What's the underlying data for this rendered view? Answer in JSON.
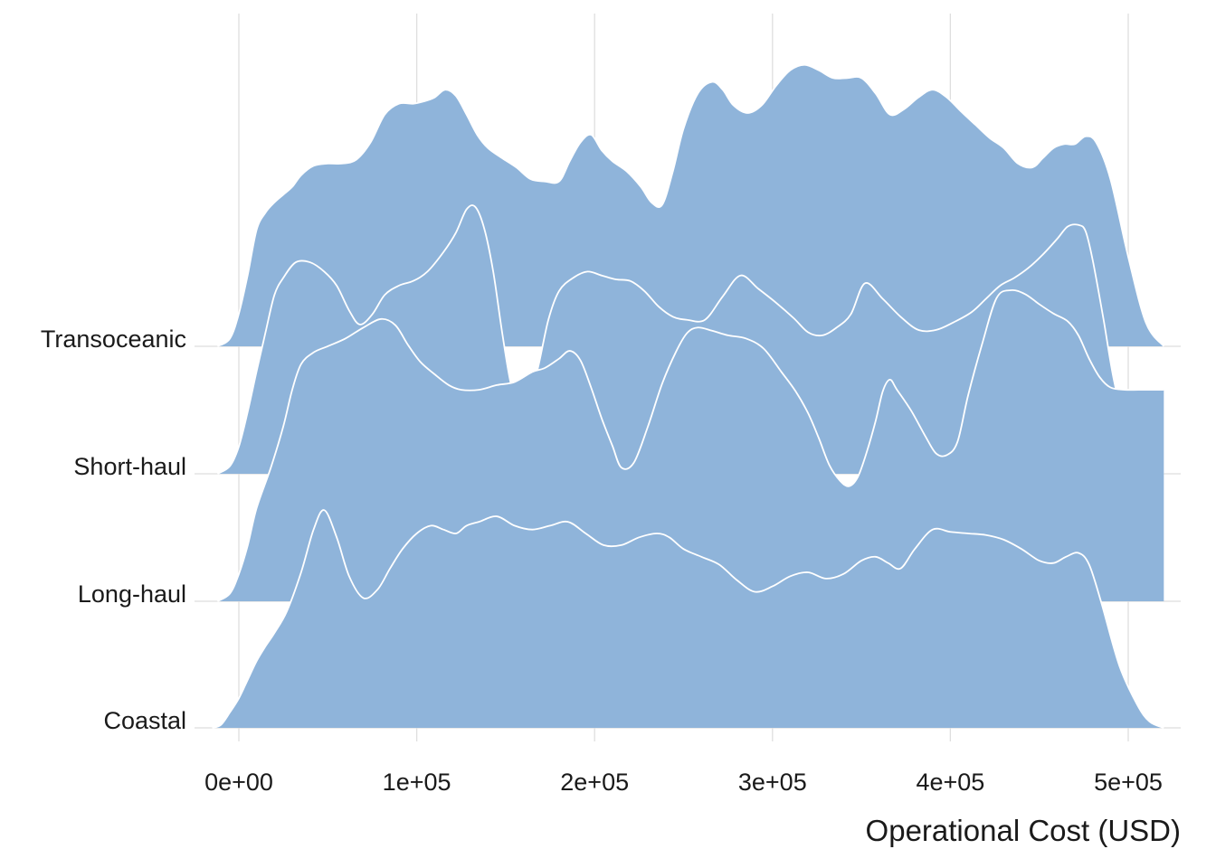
{
  "chart_data": {
    "type": "ridgeline",
    "xlabel": "Operational Cost (USD)",
    "ylabel": "",
    "title": "",
    "xlim": [
      -15000,
      527000
    ],
    "x_ticks": [
      0,
      100000,
      200000,
      300000,
      400000,
      500000
    ],
    "x_tick_labels": [
      "0e+00",
      "1e+05",
      "2e+05",
      "3e+05",
      "4e+05",
      "5e+05"
    ],
    "grid": "vertical major only",
    "fill_color": "#8fb4da",
    "outline_color": "#ffffff",
    "categories": [
      "Coastal",
      "Long-haul",
      "Short-haul",
      "Transoceanic"
    ],
    "series": [
      {
        "name": "Coastal",
        "x": [
          -15000,
          -10000,
          -5000,
          0,
          5000,
          10000,
          15000,
          20000,
          27000,
          35000,
          42000,
          48000,
          55000,
          62000,
          70000,
          78000,
          85000,
          92000,
          100000,
          108000,
          115000,
          122000,
          128000,
          135000,
          145000,
          155000,
          165000,
          175000,
          185000,
          195000,
          205000,
          215000,
          225000,
          235000,
          242000,
          250000,
          260000,
          270000,
          280000,
          290000,
          300000,
          310000,
          320000,
          330000,
          340000,
          350000,
          358000,
          365000,
          372000,
          380000,
          390000,
          400000,
          410000,
          420000,
          430000,
          440000,
          450000,
          458000,
          465000,
          472000,
          478000,
          485000,
          495000,
          505000,
          512000,
          520000
        ],
        "y": [
          0,
          0.04,
          0.2,
          0.38,
          0.62,
          0.86,
          1.05,
          1.22,
          1.5,
          2.0,
          2.55,
          2.8,
          2.45,
          1.95,
          1.67,
          1.78,
          2.05,
          2.3,
          2.5,
          2.6,
          2.55,
          2.5,
          2.6,
          2.65,
          2.72,
          2.6,
          2.55,
          2.6,
          2.65,
          2.5,
          2.35,
          2.35,
          2.45,
          2.5,
          2.45,
          2.3,
          2.2,
          2.1,
          1.9,
          1.75,
          1.82,
          1.95,
          2.0,
          1.92,
          1.98,
          2.15,
          2.2,
          2.12,
          2.05,
          2.3,
          2.55,
          2.52,
          2.5,
          2.48,
          2.42,
          2.3,
          2.15,
          2.12,
          2.2,
          2.25,
          2.1,
          1.6,
          0.8,
          0.3,
          0.08,
          0
        ]
      },
      {
        "name": "Long-haul",
        "x": [
          -12000,
          -5000,
          0,
          5000,
          10000,
          18000,
          25000,
          30000,
          35000,
          42000,
          50000,
          60000,
          70000,
          80000,
          88000,
          95000,
          102000,
          110000,
          118000,
          125000,
          135000,
          145000,
          155000,
          165000,
          172000,
          180000,
          186000,
          192000,
          198000,
          204000,
          210000,
          215000,
          222000,
          230000,
          238000,
          246000,
          252000,
          258000,
          266000,
          275000,
          285000,
          295000,
          305000,
          313000,
          320000,
          326000,
          332000,
          338000,
          343000,
          348000,
          353000,
          358000,
          362000,
          366000,
          370000,
          378000,
          386000,
          392000,
          398000,
          404000,
          410000,
          418000,
          426000,
          434000,
          442000,
          450000,
          458000,
          466000,
          472000,
          478000,
          484000,
          490000,
          498000,
          506000,
          514000,
          520000
        ],
        "y": [
          0,
          0.1,
          0.35,
          0.72,
          1.2,
          1.72,
          2.25,
          2.72,
          3.05,
          3.2,
          3.28,
          3.38,
          3.52,
          3.63,
          3.55,
          3.3,
          3.08,
          2.92,
          2.78,
          2.72,
          2.72,
          2.78,
          2.82,
          2.95,
          3.0,
          3.12,
          3.22,
          3.1,
          2.75,
          2.35,
          2.0,
          1.72,
          1.78,
          2.25,
          2.8,
          3.22,
          3.45,
          3.52,
          3.48,
          3.42,
          3.38,
          3.25,
          2.95,
          2.7,
          2.42,
          2.1,
          1.75,
          1.55,
          1.48,
          1.6,
          1.92,
          2.32,
          2.7,
          2.85,
          2.72,
          2.45,
          2.12,
          1.9,
          1.88,
          2.05,
          2.65,
          3.32,
          3.9,
          4.0,
          3.95,
          3.82,
          3.7,
          3.6,
          3.42,
          3.12,
          2.88,
          2.75,
          2.72,
          2.72,
          2.72,
          2.72
        ]
      },
      {
        "name": "Short-haul",
        "x": [
          -12000,
          -5000,
          0,
          5000,
          10000,
          15000,
          20000,
          25000,
          32000,
          40000,
          48000,
          55000,
          62000,
          68000,
          75000,
          82000,
          90000,
          98000,
          106000,
          115000,
          122000,
          128000,
          133000,
          138000,
          143000,
          148000,
          153000,
          158000,
          163000,
          168000,
          174000,
          180000,
          188000,
          196000,
          204000,
          212000,
          220000,
          228000,
          236000,
          244000,
          252000,
          262000,
          272000,
          282000,
          292000,
          302000,
          312000,
          320000,
          328000,
          336000,
          344000,
          352000,
          362000,
          372000,
          382000,
          392000,
          402000,
          412000,
          420000,
          428000,
          436000,
          444000,
          452000,
          460000,
          466000,
          472000,
          476000,
          480000,
          486000,
          492000,
          500000,
          510000,
          520000
        ],
        "y": [
          0,
          0.1,
          0.35,
          0.8,
          1.32,
          1.82,
          2.3,
          2.52,
          2.72,
          2.72,
          2.6,
          2.42,
          2.1,
          1.92,
          2.05,
          2.3,
          2.42,
          2.48,
          2.6,
          2.85,
          3.1,
          3.4,
          3.43,
          3.15,
          2.6,
          1.82,
          1.15,
          0.88,
          1.02,
          1.35,
          1.98,
          2.35,
          2.52,
          2.6,
          2.55,
          2.5,
          2.48,
          2.35,
          2.15,
          2.02,
          1.98,
          1.98,
          2.28,
          2.55,
          2.38,
          2.2,
          2.0,
          1.82,
          1.78,
          1.88,
          2.05,
          2.45,
          2.25,
          2.02,
          1.85,
          1.85,
          1.95,
          2.08,
          2.25,
          2.42,
          2.52,
          2.65,
          2.82,
          3.02,
          3.18,
          3.2,
          3.12,
          2.75,
          2.0,
          1.2,
          0.48,
          0.12,
          0
        ]
      },
      {
        "name": "Transoceanic",
        "x": [
          -12000,
          -5000,
          0,
          5000,
          10000,
          15000,
          20000,
          25000,
          30000,
          35000,
          42000,
          50000,
          58000,
          66000,
          74000,
          82000,
          90000,
          98000,
          104000,
          110000,
          116000,
          122000,
          128000,
          134000,
          140000,
          148000,
          156000,
          164000,
          172000,
          180000,
          186000,
          192000,
          198000,
          204000,
          210000,
          218000,
          226000,
          232000,
          238000,
          244000,
          250000,
          258000,
          266000,
          272000,
          278000,
          286000,
          294000,
          302000,
          310000,
          318000,
          326000,
          334000,
          342000,
          350000,
          358000,
          366000,
          374000,
          382000,
          390000,
          398000,
          406000,
          414000,
          422000,
          430000,
          438000,
          446000,
          452000,
          458000,
          464000,
          470000,
          476000,
          482000,
          490000,
          500000,
          510000,
          520000
        ],
        "y": [
          0,
          0.1,
          0.42,
          0.92,
          1.5,
          1.72,
          1.85,
          1.95,
          2.05,
          2.2,
          2.32,
          2.35,
          2.35,
          2.4,
          2.62,
          2.98,
          3.12,
          3.12,
          3.15,
          3.2,
          3.3,
          3.22,
          2.98,
          2.72,
          2.55,
          2.42,
          2.3,
          2.15,
          2.12,
          2.12,
          2.38,
          2.62,
          2.72,
          2.52,
          2.38,
          2.25,
          2.05,
          1.85,
          1.82,
          2.25,
          2.8,
          3.25,
          3.4,
          3.3,
          3.1,
          3.0,
          3.1,
          3.35,
          3.55,
          3.62,
          3.55,
          3.45,
          3.45,
          3.45,
          3.25,
          2.98,
          3.05,
          3.2,
          3.3,
          3.2,
          3.02,
          2.85,
          2.68,
          2.55,
          2.35,
          2.3,
          2.42,
          2.55,
          2.6,
          2.6,
          2.7,
          2.62,
          2.15,
          1.15,
          0.3,
          0
        ]
      }
    ]
  }
}
